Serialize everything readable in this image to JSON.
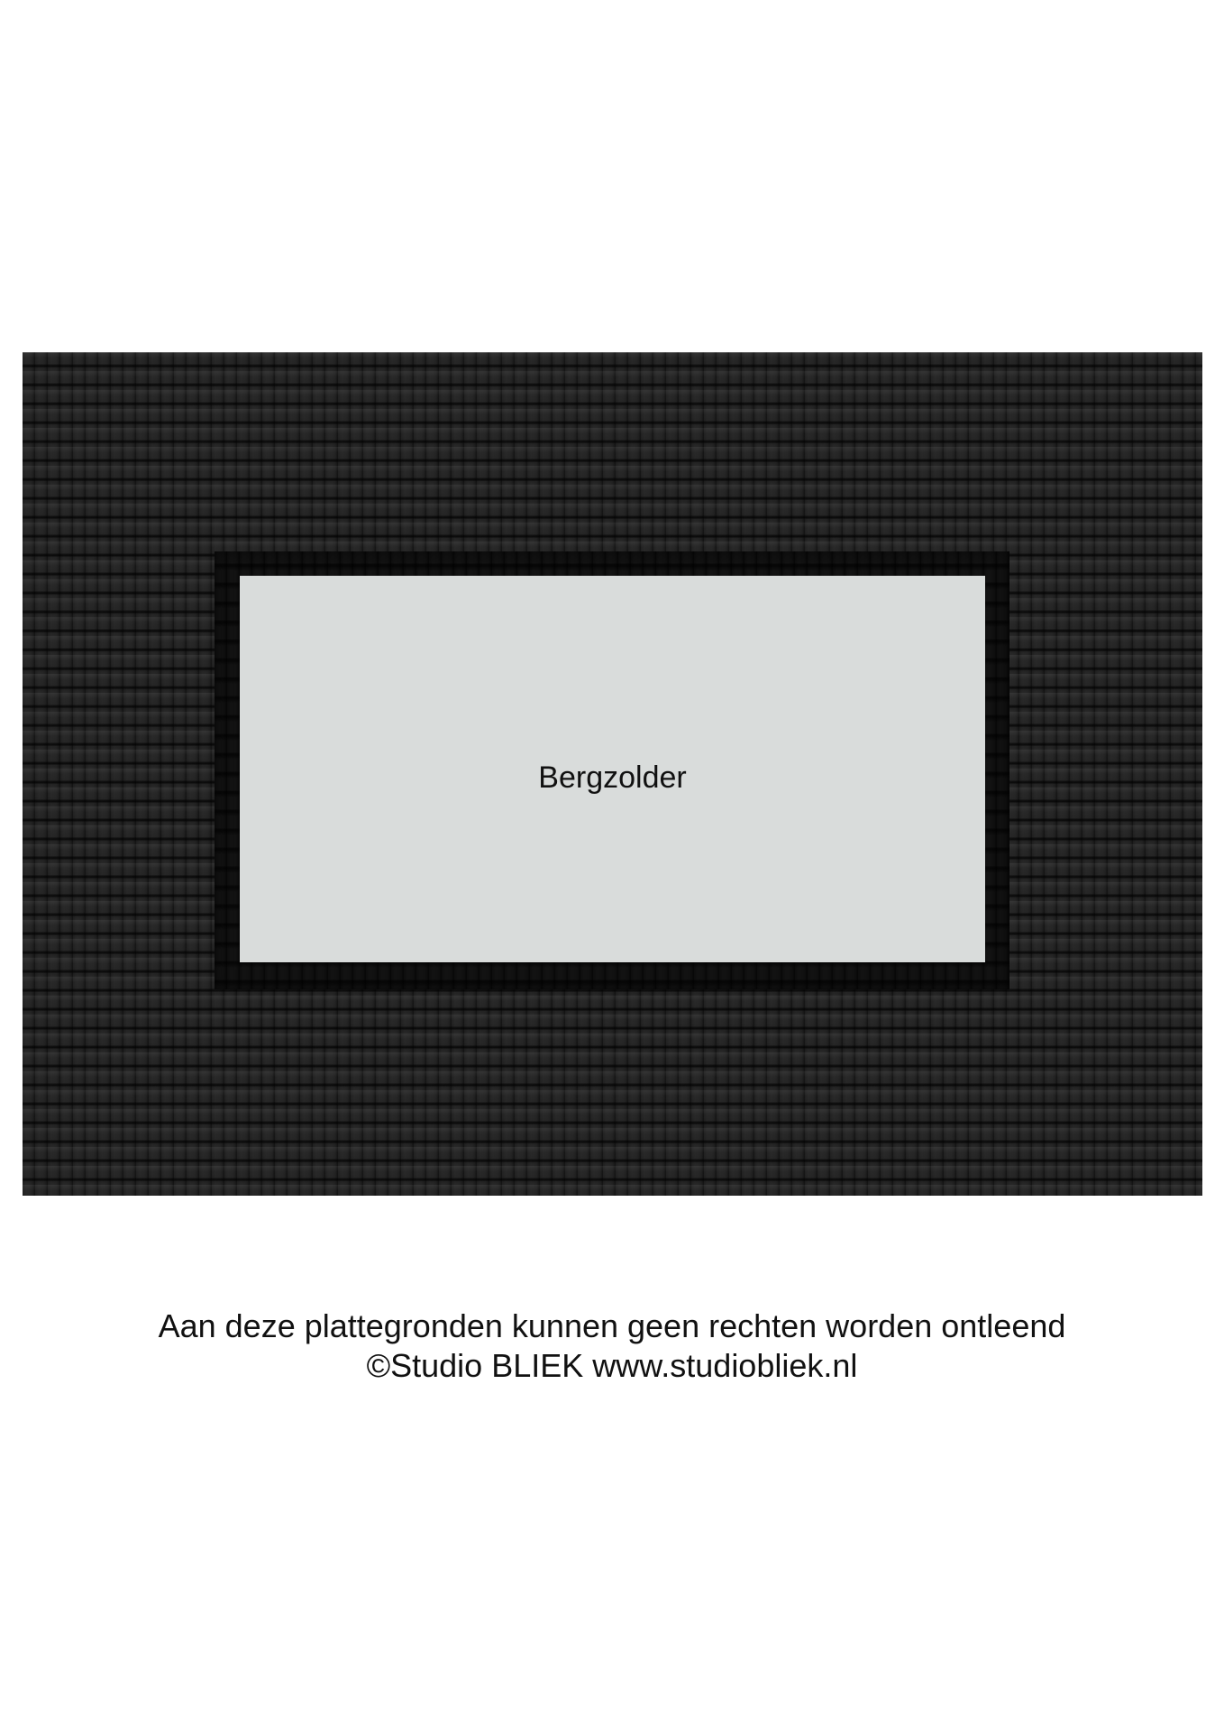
{
  "floorplan": {
    "room_label": "Bergzolder"
  },
  "footer": {
    "disclaimer": "Aan deze plattegronden kunnen geen rechten worden ontleend",
    "copyright": "©Studio BLIEK www.studiobliek.nl"
  },
  "colors": {
    "roof": "#5f5f5f",
    "opening": "#3e3e3e",
    "room_fill": "#d9dcdb",
    "text": "#111111"
  }
}
